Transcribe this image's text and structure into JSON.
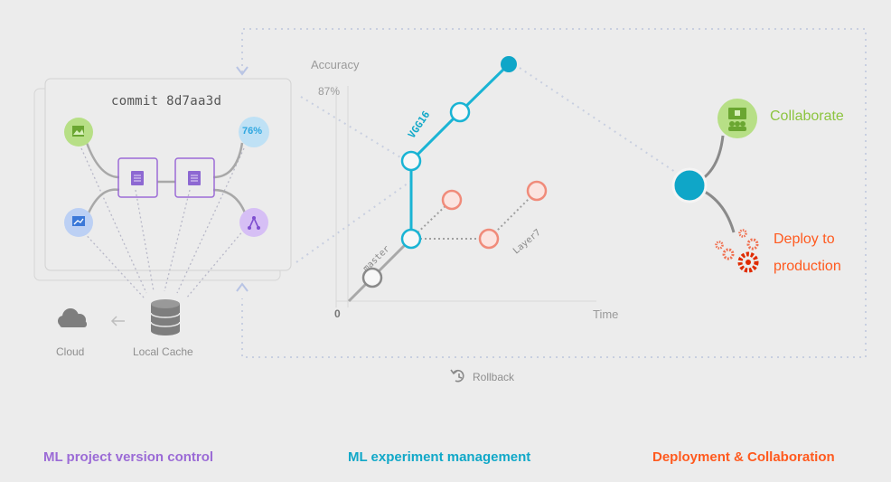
{
  "version_control": {
    "commit_label": "commit 8d7aa3d",
    "metric_badge": "76%",
    "cloud_label": "Cloud",
    "local_cache_label": "Local Cache"
  },
  "experiments": {
    "y_axis_label": "Accuracy",
    "y_tick_87": "87%",
    "x_axis_origin": "0",
    "x_axis_label": "Time",
    "branches": [
      "VGG16",
      "master",
      "Layer7"
    ],
    "rollback_label": "Rollback"
  },
  "deployment": {
    "collaborate_label": "Collaborate",
    "deploy_label": "Deploy to production"
  },
  "footer": {
    "version_control_title": "ML project version control",
    "experiment_title": "ML experiment management",
    "deployment_title": "Deployment & Collaboration"
  },
  "colors": {
    "purple": "#9b6bd6",
    "teal": "#11a8c8",
    "orange": "#ff5a1f",
    "green": "#8cc43f",
    "salmon": "#f08b7a",
    "gray": "#9a9a9a"
  },
  "icons": [
    "image-icon",
    "chart-icon",
    "graph-icon",
    "file-icon",
    "database-icon",
    "cloud-icon",
    "team-icon",
    "gears-icon",
    "rollback-icon"
  ]
}
